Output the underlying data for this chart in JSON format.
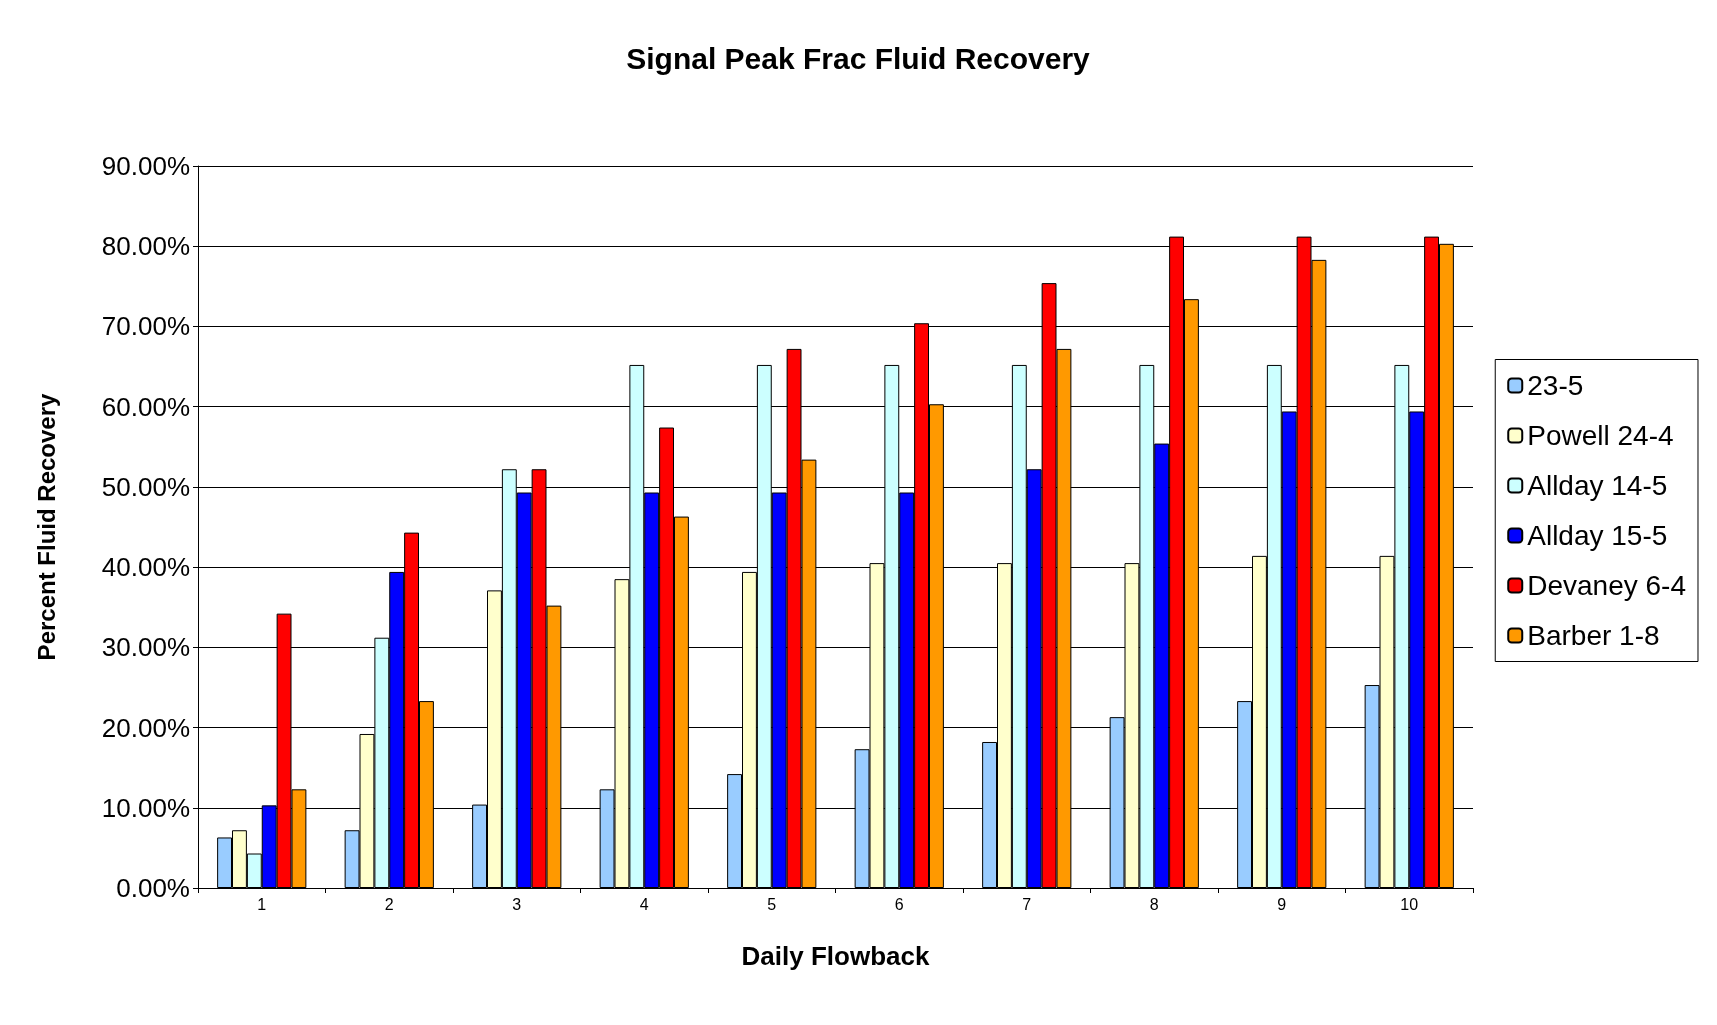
{
  "chart_data": {
    "type": "bar",
    "title": "Signal Peak Frac Fluid Recovery",
    "xlabel": "Daily Flowback",
    "ylabel": "Percent Fluid Recovery",
    "categories": [
      "1",
      "2",
      "3",
      "4",
      "5",
      "6",
      "7",
      "8",
      "9",
      "10"
    ],
    "series": [
      {
        "name": "23-5",
        "color": "#99ccff",
        "values": [
          6.3,
          7.2,
          10.4,
          12.3,
          14.2,
          17.3,
          18.2,
          21.3,
          23.3,
          25.3
        ]
      },
      {
        "name": "Powell 24-4",
        "color": "#ffffcc",
        "values": [
          7.2,
          19.2,
          37.1,
          38.5,
          39.4,
          40.5,
          40.5,
          40.5,
          41.4,
          41.4
        ]
      },
      {
        "name": "Allday 14-5",
        "color": "#ccffff",
        "values": [
          4.3,
          31.2,
          52.2,
          65.2,
          65.2,
          65.2,
          65.2,
          65.2,
          65.2,
          65.2
        ]
      },
      {
        "name": "Allday 15-5",
        "color": "#0000ff",
        "values": [
          10.3,
          39.4,
          49.3,
          49.3,
          49.3,
          49.3,
          52.2,
          55.4,
          59.4,
          59.4
        ]
      },
      {
        "name": "Devaney 6-4",
        "color": "#ff0000",
        "values": [
          34.2,
          44.3,
          52.2,
          57.4,
          67.2,
          70.4,
          75.4,
          81.2,
          81.2,
          81.2
        ]
      },
      {
        "name": "Barber 1-8",
        "color": "#ff9900",
        "values": [
          12.3,
          23.3,
          35.2,
          46.3,
          53.4,
          60.3,
          67.2,
          73.4,
          78.3,
          80.3
        ]
      }
    ],
    "ylim": [
      0,
      90
    ],
    "yticks": [
      {
        "value": 0,
        "label": "0.00%"
      },
      {
        "value": 10,
        "label": "10.00%"
      },
      {
        "value": 20,
        "label": "20.00%"
      },
      {
        "value": 30,
        "label": "30.00%"
      },
      {
        "value": 40,
        "label": "40.00%"
      },
      {
        "value": 50,
        "label": "50.00%"
      },
      {
        "value": 60,
        "label": "60.00%"
      },
      {
        "value": 70,
        "label": "70.00%"
      },
      {
        "value": 80,
        "label": "80.00%"
      },
      {
        "value": 90,
        "label": "90.00%"
      }
    ],
    "grid": "y",
    "legend": "right"
  }
}
